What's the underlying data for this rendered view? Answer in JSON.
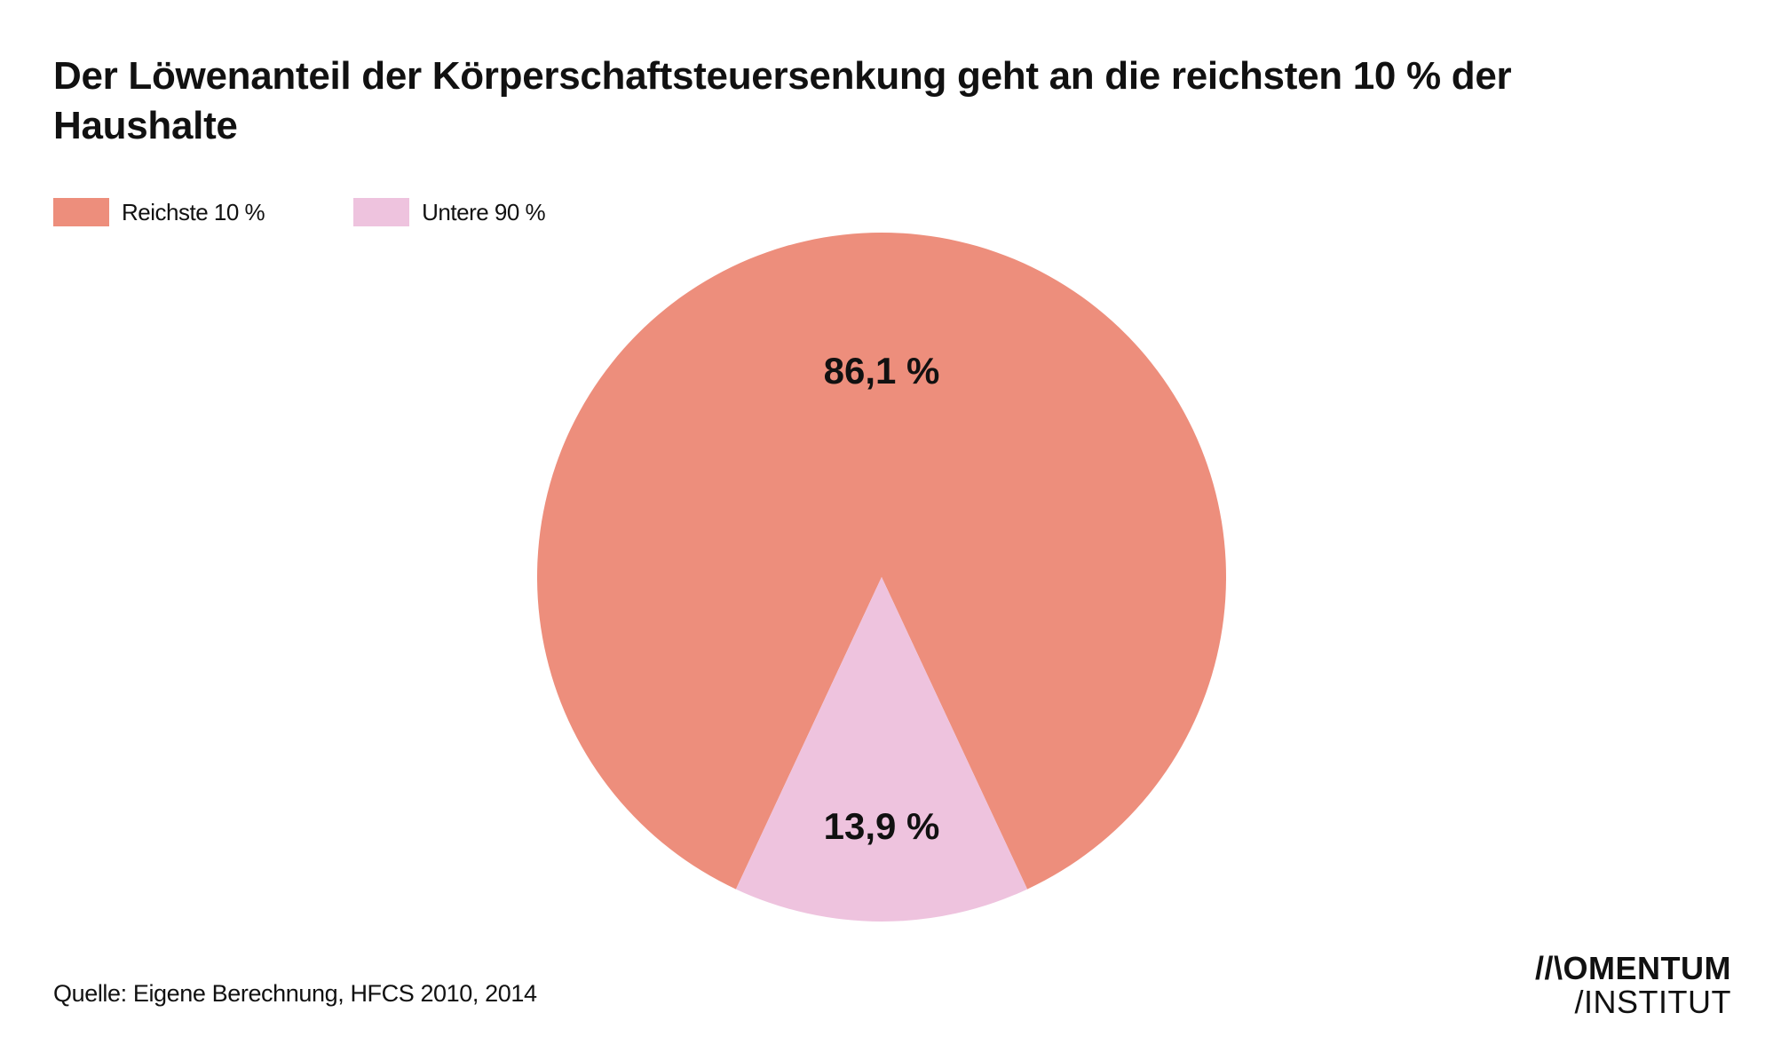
{
  "header": {
    "title": "Der Löwenanteil der Körperschaftsteuersenkung geht an die reichsten 10 % der Haushalte"
  },
  "chart_data": {
    "type": "pie",
    "title": "Der Löwenanteil der Körperschaftsteuersenkung geht an die reichsten 10 % der Haushalte",
    "legend_position": "top-left",
    "slices": [
      {
        "name": "Reichste 10 %",
        "value": 86.1,
        "label": "86,1 %",
        "color": "#ed8e7c"
      },
      {
        "name": "Untere 90 %",
        "value": 13.9,
        "label": "13,9 %",
        "color": "#eec3de"
      }
    ]
  },
  "footer": {
    "source": "Quelle: Eigene Berechnung, HFCS 2010, 2014"
  },
  "logo": {
    "line1": "//\\OMENTUM",
    "line2": "/INSTITUT"
  }
}
